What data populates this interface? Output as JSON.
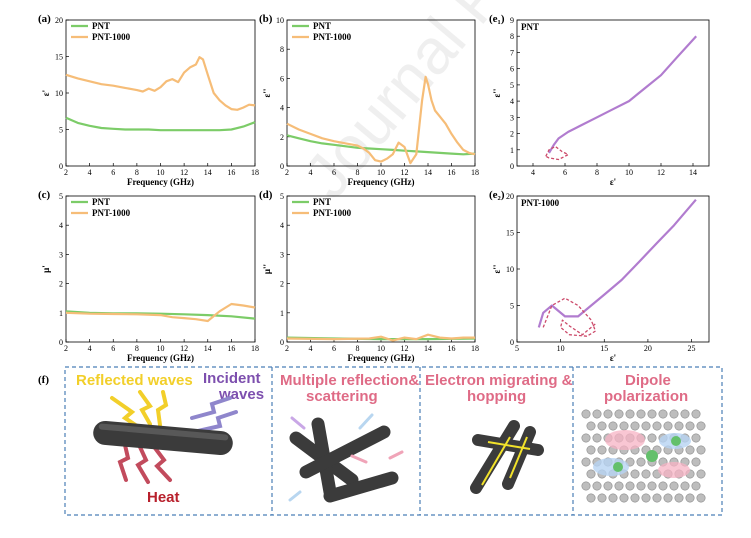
{
  "watermark": "Journal Pre-proof",
  "colors": {
    "pnt": "#7ccc68",
    "pnt1000": "#f6bd78",
    "cole": "#b17ccf",
    "cole_dash": "#cc4a6a",
    "reflected": "#f2cf2a",
    "incident": "#7d4fae",
    "heat": "#b8202c",
    "pink": "#df6b86",
    "panel_border": "#4b7fb6"
  },
  "chart_data": [
    {
      "id": "a",
      "label": "(a)",
      "type": "line",
      "title": "",
      "xlabel": "Frequency (GHz)",
      "ylabel": "ε'",
      "xlim": [
        2,
        18
      ],
      "ylim": [
        0,
        20
      ],
      "xticks": [
        2,
        4,
        6,
        8,
        10,
        12,
        14,
        16,
        18
      ],
      "yticks": [
        0,
        5,
        10,
        15,
        20
      ],
      "legend": "top-left",
      "series": [
        {
          "name": "PNT",
          "color": "#7ccc68",
          "x": [
            2,
            3,
            4,
            5,
            6,
            7,
            8,
            9,
            10,
            11,
            12,
            13,
            14,
            15,
            16,
            17,
            18
          ],
          "y": [
            6.6,
            5.9,
            5.5,
            5.2,
            5.1,
            5.0,
            5.0,
            5.0,
            4.9,
            4.9,
            4.9,
            4.9,
            4.9,
            4.9,
            5.0,
            5.4,
            6.0
          ]
        },
        {
          "name": "PNT-1000",
          "color": "#f6bd78",
          "x": [
            2,
            3,
            4,
            5,
            6,
            7,
            8,
            8.5,
            9,
            9.5,
            10,
            10.5,
            11,
            11.5,
            12,
            12.5,
            13,
            13.3,
            13.6,
            14,
            14.5,
            15,
            15.5,
            16,
            16.5,
            17,
            17.5,
            18
          ],
          "y": [
            12.5,
            12.0,
            11.6,
            11.2,
            11.0,
            10.7,
            10.4,
            10.2,
            10.6,
            10.3,
            10.8,
            11.6,
            11.9,
            11.5,
            12.8,
            13.5,
            13.9,
            14.9,
            14.6,
            12.5,
            10.0,
            9.0,
            8.3,
            7.8,
            7.7,
            8.0,
            8.4,
            8.3
          ]
        }
      ]
    },
    {
      "id": "b",
      "label": "(b)",
      "type": "line",
      "title": "",
      "xlabel": "Frequency (GHz)",
      "ylabel": "ε''",
      "xlim": [
        2,
        18
      ],
      "ylim": [
        0,
        10
      ],
      "xticks": [
        2,
        4,
        6,
        8,
        10,
        12,
        14,
        16,
        18
      ],
      "yticks": [
        0,
        2,
        4,
        6,
        8,
        10
      ],
      "legend": "top-left",
      "series": [
        {
          "name": "PNT",
          "color": "#7ccc68",
          "x": [
            2,
            3,
            4,
            5,
            6,
            7,
            8,
            9,
            10,
            11,
            12,
            13,
            14,
            15,
            16,
            17,
            18
          ],
          "y": [
            2.1,
            1.9,
            1.7,
            1.55,
            1.45,
            1.35,
            1.25,
            1.2,
            1.15,
            1.1,
            1.05,
            1.0,
            0.95,
            0.9,
            0.85,
            0.8,
            0.85
          ]
        },
        {
          "name": "PNT-1000",
          "color": "#f6bd78",
          "x": [
            2,
            3,
            4,
            5,
            6,
            7,
            8,
            8.5,
            9,
            9.5,
            10,
            10.5,
            11,
            11.5,
            12,
            12.5,
            13,
            13.5,
            13.8,
            14,
            14.3,
            14.6,
            15,
            15.5,
            16,
            16.5,
            17,
            17.5,
            18
          ],
          "y": [
            2.9,
            2.5,
            2.2,
            1.9,
            1.7,
            1.55,
            1.4,
            1.2,
            0.9,
            0.4,
            0.3,
            0.5,
            0.8,
            1.6,
            1.3,
            0.2,
            0.8,
            4.5,
            6.1,
            5.6,
            4.5,
            3.8,
            3.4,
            2.9,
            2.2,
            1.6,
            1.1,
            0.9,
            0.8
          ]
        }
      ]
    },
    {
      "id": "c",
      "label": "(c)",
      "type": "line",
      "title": "",
      "xlabel": "Frequency (GHz)",
      "ylabel": "μ'",
      "xlim": [
        2,
        18
      ],
      "ylim": [
        0,
        5
      ],
      "xticks": [
        2,
        4,
        6,
        8,
        10,
        12,
        14,
        16,
        18
      ],
      "yticks": [
        0,
        1,
        2,
        3,
        4,
        5
      ],
      "legend": "top-left",
      "series": [
        {
          "name": "PNT",
          "color": "#7ccc68",
          "x": [
            2,
            4,
            6,
            8,
            10,
            12,
            14,
            16,
            18
          ],
          "y": [
            1.05,
            1.0,
            0.98,
            0.98,
            0.97,
            0.95,
            0.92,
            0.88,
            0.8
          ]
        },
        {
          "name": "PNT-1000",
          "color": "#f6bd78",
          "x": [
            2,
            4,
            6,
            8,
            10,
            11,
            12,
            13,
            14,
            15,
            16,
            17,
            18
          ],
          "y": [
            1.0,
            0.97,
            0.96,
            0.95,
            0.92,
            0.85,
            0.82,
            0.78,
            0.72,
            1.05,
            1.3,
            1.25,
            1.18
          ]
        }
      ]
    },
    {
      "id": "d",
      "label": "(d)",
      "type": "line",
      "title": "",
      "xlabel": "Frequency (GHz)",
      "ylabel": "μ''",
      "xlim": [
        2,
        18
      ],
      "ylim": [
        0,
        5
      ],
      "xticks": [
        2,
        4,
        6,
        8,
        10,
        12,
        14,
        16,
        18
      ],
      "yticks": [
        0,
        1,
        2,
        3,
        4,
        5
      ],
      "legend": "top-left",
      "series": [
        {
          "name": "PNT",
          "color": "#7ccc68",
          "x": [
            2,
            6,
            10,
            14,
            18
          ],
          "y": [
            0.15,
            0.12,
            0.1,
            0.1,
            0.12
          ]
        },
        {
          "name": "PNT-1000",
          "color": "#f6bd78",
          "x": [
            2,
            6,
            9,
            10,
            11,
            12,
            13,
            14,
            15,
            16,
            17,
            18
          ],
          "y": [
            0.12,
            0.1,
            0.12,
            0.18,
            0.05,
            0.15,
            0.1,
            0.25,
            0.15,
            0.12,
            0.15,
            0.15
          ]
        }
      ]
    },
    {
      "id": "e1",
      "label": "(e₁)",
      "type": "line",
      "title": "",
      "xlabel": "ε'",
      "ylabel": "ε''",
      "inset_label": "PNT",
      "xlim": [
        3,
        15
      ],
      "ylim": [
        0,
        9
      ],
      "xticks": [
        4,
        6,
        8,
        10,
        12,
        14
      ],
      "yticks": [
        0,
        1,
        2,
        3,
        4,
        5,
        6,
        7,
        8,
        9
      ],
      "series": [
        {
          "name": "",
          "color": "#b17ccf",
          "x": [
            5.0,
            5.3,
            5.6,
            6.2,
            7.0,
            8.0,
            9.0,
            10.0,
            11.0,
            12.0,
            13.0,
            14.2
          ],
          "y": [
            0.8,
            1.3,
            1.7,
            2.1,
            2.5,
            3.0,
            3.5,
            4.0,
            4.8,
            5.6,
            6.7,
            8.0
          ]
        },
        {
          "name": "",
          "color": "#cc4a6a",
          "dashed": true,
          "x": [
            4.8,
            5.0,
            5.4,
            5.8,
            6.2,
            5.6,
            5.0,
            4.8
          ],
          "y": [
            0.6,
            1.0,
            1.2,
            0.9,
            0.7,
            0.4,
            0.5,
            0.6
          ]
        }
      ]
    },
    {
      "id": "e2",
      "label": "(e₂)",
      "type": "line",
      "title": "",
      "xlabel": "ε'",
      "ylabel": "ε''",
      "inset_label": "PNT-1000",
      "xlim": [
        5,
        27
      ],
      "ylim": [
        0,
        20
      ],
      "xticks": [
        5,
        10,
        15,
        20,
        25
      ],
      "yticks": [
        0,
        5,
        10,
        15,
        20
      ],
      "series": [
        {
          "name": "",
          "color": "#b17ccf",
          "x": [
            7.5,
            8.0,
            9.0,
            10.5,
            12.0,
            13.5,
            15.0,
            17.0,
            19.0,
            21.0,
            23.0,
            25.5
          ],
          "y": [
            2.0,
            4.0,
            5.0,
            3.5,
            3.5,
            5.0,
            6.5,
            8.5,
            11.0,
            13.5,
            16.0,
            19.5
          ]
        },
        {
          "name": "",
          "color": "#cc4a6a",
          "dashed": true,
          "x": [
            8.0,
            9.0,
            10.5,
            12.0,
            13.5,
            14.0,
            13.0,
            11.0,
            10.0,
            10.2,
            11.0,
            12.5,
            14.0
          ],
          "y": [
            2.0,
            5.0,
            6.0,
            5.0,
            3.0,
            1.5,
            0.8,
            1.0,
            2.0,
            3.0,
            2.2,
            1.0,
            2.5
          ]
        }
      ]
    }
  ],
  "mechanism": {
    "label": "(f)",
    "panels": [
      {
        "lines": [
          "Multiple reflection&",
          "scattering"
        ]
      },
      {
        "lines": [
          "Electron migrating &",
          "hopping"
        ]
      },
      {
        "lines": [
          "Dipole",
          "polarization"
        ]
      }
    ],
    "reflected": "Reflected waves",
    "incident": [
      "Incident",
      "waves"
    ],
    "heat": "Heat"
  }
}
